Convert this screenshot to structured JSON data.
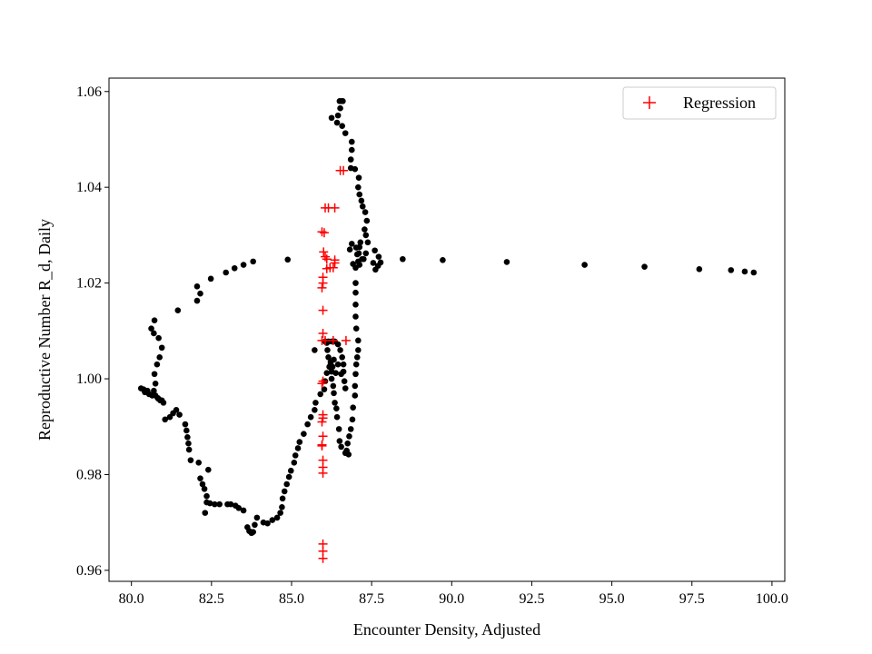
{
  "chart_data": {
    "type": "scatter",
    "title": "",
    "xlabel": "Encounter Density, Adjusted",
    "ylabel": "Reproductive Number R_d, Daily",
    "xlim": [
      79.3,
      100.4
    ],
    "ylim": [
      0.9577,
      1.0628
    ],
    "xticks": [
      80,
      82.5,
      85,
      87.5,
      90,
      92.5,
      95,
      97.5,
      100
    ],
    "xtick_labels": [
      "80.0",
      "82.5",
      "85.0",
      "87.5",
      "90.0",
      "92.5",
      "95.0",
      "97.5",
      "100.0"
    ],
    "yticks": [
      0.96,
      0.98,
      1.0,
      1.02,
      1.04,
      1.06
    ],
    "ytick_labels": [
      "0.96",
      "0.98",
      "1.00",
      "1.02",
      "1.04",
      "1.06"
    ],
    "grid": false,
    "legend_position": "top-right",
    "series": [
      {
        "marker": "dot",
        "color": "#000000",
        "points": [
          [
            99.43,
            1.0222
          ],
          [
            99.15,
            1.0224
          ],
          [
            98.72,
            1.0227
          ],
          [
            97.73,
            1.0229
          ],
          [
            96.02,
            1.0234
          ],
          [
            94.15,
            1.0238
          ],
          [
            91.72,
            1.0244
          ],
          [
            89.72,
            1.0248
          ],
          [
            88.47,
            1.025
          ],
          [
            87.78,
            1.0243
          ],
          [
            87.7,
            1.0236
          ],
          [
            87.62,
            1.0228
          ],
          [
            87.55,
            1.0242
          ],
          [
            87.72,
            1.0255
          ],
          [
            87.6,
            1.0268
          ],
          [
            87.38,
            1.0285
          ],
          [
            87.32,
            1.03
          ],
          [
            87.28,
            1.0312
          ],
          [
            87.35,
            1.033
          ],
          [
            87.3,
            1.0348
          ],
          [
            87.22,
            1.036
          ],
          [
            87.18,
            1.0372
          ],
          [
            87.12,
            1.0385
          ],
          [
            87.08,
            1.04
          ],
          [
            87.1,
            1.042
          ],
          [
            86.98,
            1.0438
          ],
          [
            86.88,
            1.0478
          ],
          [
            86.88,
            1.0495
          ],
          [
            86.85,
            1.0458
          ],
          [
            86.85,
            1.044
          ],
          [
            86.68,
            1.0513
          ],
          [
            86.58,
            1.0528
          ],
          [
            86.42,
            1.0535
          ],
          [
            86.45,
            1.055
          ],
          [
            86.52,
            1.0565
          ],
          [
            86.6,
            1.058
          ],
          [
            86.55,
            1.058
          ],
          [
            86.5,
            1.058
          ],
          [
            86.25,
            1.0545
          ],
          [
            87.32,
            1.0262
          ],
          [
            87.25,
            1.025
          ],
          [
            87.08,
            1.0245
          ],
          [
            87.12,
            1.0238
          ],
          [
            87.0,
            1.0232
          ],
          [
            86.92,
            1.024
          ],
          [
            86.82,
            1.027
          ],
          [
            86.88,
            1.0282
          ],
          [
            87.02,
            1.0274
          ],
          [
            87.1,
            1.0262
          ],
          [
            87.2,
            1.025
          ],
          [
            87.15,
            1.0285
          ],
          [
            87.12,
            1.0275
          ],
          [
            87.05,
            1.026
          ],
          [
            87.0,
            1.02
          ],
          [
            87.0,
            1.018
          ],
          [
            87.0,
            1.0155
          ],
          [
            87.0,
            1.013
          ],
          [
            87.02,
            1.0105
          ],
          [
            87.08,
            1.008
          ],
          [
            87.08,
            1.006
          ],
          [
            87.05,
            1.0045
          ],
          [
            87.02,
            1.003
          ],
          [
            87.0,
            1.001
          ],
          [
            86.98,
            0.9985
          ],
          [
            86.98,
            0.9965
          ],
          [
            86.92,
            0.994
          ],
          [
            86.9,
            0.9915
          ],
          [
            86.85,
            0.9895
          ],
          [
            86.8,
            0.988
          ],
          [
            86.75,
            0.9865
          ],
          [
            86.72,
            0.985
          ],
          [
            86.78,
            0.9842
          ],
          [
            86.68,
            0.9845
          ],
          [
            86.55,
            0.9858
          ],
          [
            86.5,
            0.987
          ],
          [
            86.48,
            0.9895
          ],
          [
            86.42,
            0.992
          ],
          [
            86.4,
            0.9938
          ],
          [
            86.35,
            0.995
          ],
          [
            86.32,
            0.997
          ],
          [
            86.3,
            0.9985
          ],
          [
            86.25,
            1.0
          ],
          [
            86.25,
            1.0015
          ],
          [
            86.22,
            1.003
          ],
          [
            86.15,
            1.0045
          ],
          [
            86.12,
            1.006
          ],
          [
            86.1,
            1.0075
          ],
          [
            86.05,
            1.0078
          ],
          [
            86.15,
            1.0078
          ],
          [
            86.25,
            1.0078
          ],
          [
            86.35,
            1.0078
          ],
          [
            86.45,
            1.0072
          ],
          [
            86.52,
            1.006
          ],
          [
            86.58,
            1.0045
          ],
          [
            86.62,
            1.003
          ],
          [
            86.62,
            1.0015
          ],
          [
            86.65,
            0.9995
          ],
          [
            86.68,
            0.998
          ],
          [
            86.55,
            1.001
          ],
          [
            86.45,
            1.003
          ],
          [
            86.32,
            1.004
          ],
          [
            86.22,
            1.0035
          ],
          [
            86.18,
            1.0025
          ],
          [
            86.1,
            1.0012
          ],
          [
            86.05,
            0.9995
          ],
          [
            86.02,
            0.9978
          ],
          [
            85.9,
            0.9968
          ],
          [
            85.75,
            0.995
          ],
          [
            85.72,
            0.9935
          ],
          [
            85.6,
            0.992
          ],
          [
            85.5,
            0.9905
          ],
          [
            85.38,
            0.9885
          ],
          [
            85.25,
            0.9868
          ],
          [
            85.2,
            0.9855
          ],
          [
            85.12,
            0.984
          ],
          [
            85.08,
            0.9825
          ],
          [
            84.98,
            0.9808
          ],
          [
            84.92,
            0.9795
          ],
          [
            84.85,
            0.978
          ],
          [
            84.78,
            0.9765
          ],
          [
            84.72,
            0.975
          ],
          [
            84.7,
            0.9732
          ],
          [
            84.65,
            0.972
          ],
          [
            84.55,
            0.971
          ],
          [
            84.4,
            0.9705
          ],
          [
            84.25,
            0.9698
          ],
          [
            84.12,
            0.97
          ],
          [
            83.92,
            0.971
          ],
          [
            83.85,
            0.9695
          ],
          [
            83.8,
            0.968
          ],
          [
            83.75,
            0.9678
          ],
          [
            83.68,
            0.9682
          ],
          [
            83.62,
            0.969
          ],
          [
            83.5,
            0.9725
          ],
          [
            83.35,
            0.973
          ],
          [
            83.25,
            0.9735
          ],
          [
            83.1,
            0.9738
          ],
          [
            83.0,
            0.9738
          ],
          [
            82.75,
            0.9738
          ],
          [
            82.6,
            0.9738
          ],
          [
            82.45,
            0.974
          ],
          [
            82.35,
            0.9742
          ],
          [
            82.35,
            0.9755
          ],
          [
            82.28,
            0.977
          ],
          [
            82.22,
            0.978
          ],
          [
            82.15,
            0.9792
          ],
          [
            82.1,
            0.9825
          ],
          [
            82.4,
            0.981
          ],
          [
            82.3,
            0.972
          ],
          [
            81.85,
            0.983
          ],
          [
            81.8,
            0.9852
          ],
          [
            81.78,
            0.9865
          ],
          [
            81.75,
            0.9878
          ],
          [
            81.72,
            0.9892
          ],
          [
            81.68,
            0.9905
          ],
          [
            81.5,
            0.9925
          ],
          [
            81.4,
            0.9935
          ],
          [
            81.3,
            0.9928
          ],
          [
            81.2,
            0.992
          ],
          [
            81.05,
            0.9915
          ],
          [
            81.0,
            0.995
          ],
          [
            80.9,
            0.9955
          ],
          [
            80.82,
            0.996
          ],
          [
            80.75,
            0.9965
          ],
          [
            80.7,
            0.9975
          ],
          [
            80.75,
            0.999
          ],
          [
            80.72,
            1.001
          ],
          [
            80.8,
            1.003
          ],
          [
            80.88,
            1.0045
          ],
          [
            80.95,
            1.0065
          ],
          [
            80.85,
            1.0085
          ],
          [
            80.7,
            1.0095
          ],
          [
            80.62,
            1.0105
          ],
          [
            80.72,
            1.0122
          ],
          [
            80.5,
            0.9975
          ],
          [
            80.38,
            0.9978
          ],
          [
            80.3,
            0.998
          ],
          [
            80.42,
            0.9972
          ],
          [
            80.55,
            0.9968
          ],
          [
            80.65,
            0.9965
          ],
          [
            80.85,
            0.9958
          ],
          [
            80.95,
            0.9955
          ],
          [
            81.45,
            1.0143
          ],
          [
            82.05,
            1.0163
          ],
          [
            82.05,
            1.0193
          ],
          [
            82.15,
            1.0178
          ],
          [
            82.48,
            1.0209
          ],
          [
            82.95,
            1.0222
          ],
          [
            83.22,
            1.0231
          ],
          [
            83.5,
            1.0238
          ],
          [
            83.8,
            1.0245
          ],
          [
            84.88,
            1.0249
          ],
          [
            85.72,
            1.006
          ],
          [
            86.28,
            1.0025
          ],
          [
            86.38,
            1.0012
          ]
        ]
      },
      {
        "name": "Regression",
        "marker": "plus",
        "color": "#ff0000",
        "points": [
          [
            86.52,
            1.0435
          ],
          [
            86.62,
            1.0435
          ],
          [
            86.15,
            1.0357
          ],
          [
            86.35,
            1.0357
          ],
          [
            86.05,
            1.0357
          ],
          [
            85.95,
            1.0307
          ],
          [
            86.02,
            1.0305
          ],
          [
            86.0,
            1.0265
          ],
          [
            86.05,
            1.0255
          ],
          [
            86.1,
            1.025
          ],
          [
            86.35,
            1.0248
          ],
          [
            86.35,
            1.0242
          ],
          [
            86.3,
            1.0232
          ],
          [
            86.1,
            1.023
          ],
          [
            86.2,
            1.0232
          ],
          [
            85.98,
            1.0212
          ],
          [
            85.98,
            1.02
          ],
          [
            85.95,
            1.019
          ],
          [
            85.98,
            1.0143
          ],
          [
            85.98,
            1.0095
          ],
          [
            85.95,
            1.008
          ],
          [
            86.05,
            1.008
          ],
          [
            86.3,
            1.008
          ],
          [
            86.7,
            1.008
          ],
          [
            85.98,
            0.9995
          ],
          [
            85.95,
            0.999
          ],
          [
            85.98,
            0.9925
          ],
          [
            85.98,
            0.9918
          ],
          [
            85.95,
            0.991
          ],
          [
            85.98,
            0.988
          ],
          [
            85.95,
            0.9862
          ],
          [
            85.95,
            0.986
          ],
          [
            85.98,
            0.983
          ],
          [
            85.98,
            0.9815
          ],
          [
            85.98,
            0.9803
          ],
          [
            85.98,
            0.9655
          ],
          [
            85.98,
            0.964
          ],
          [
            85.98,
            0.9625
          ]
        ]
      }
    ]
  }
}
